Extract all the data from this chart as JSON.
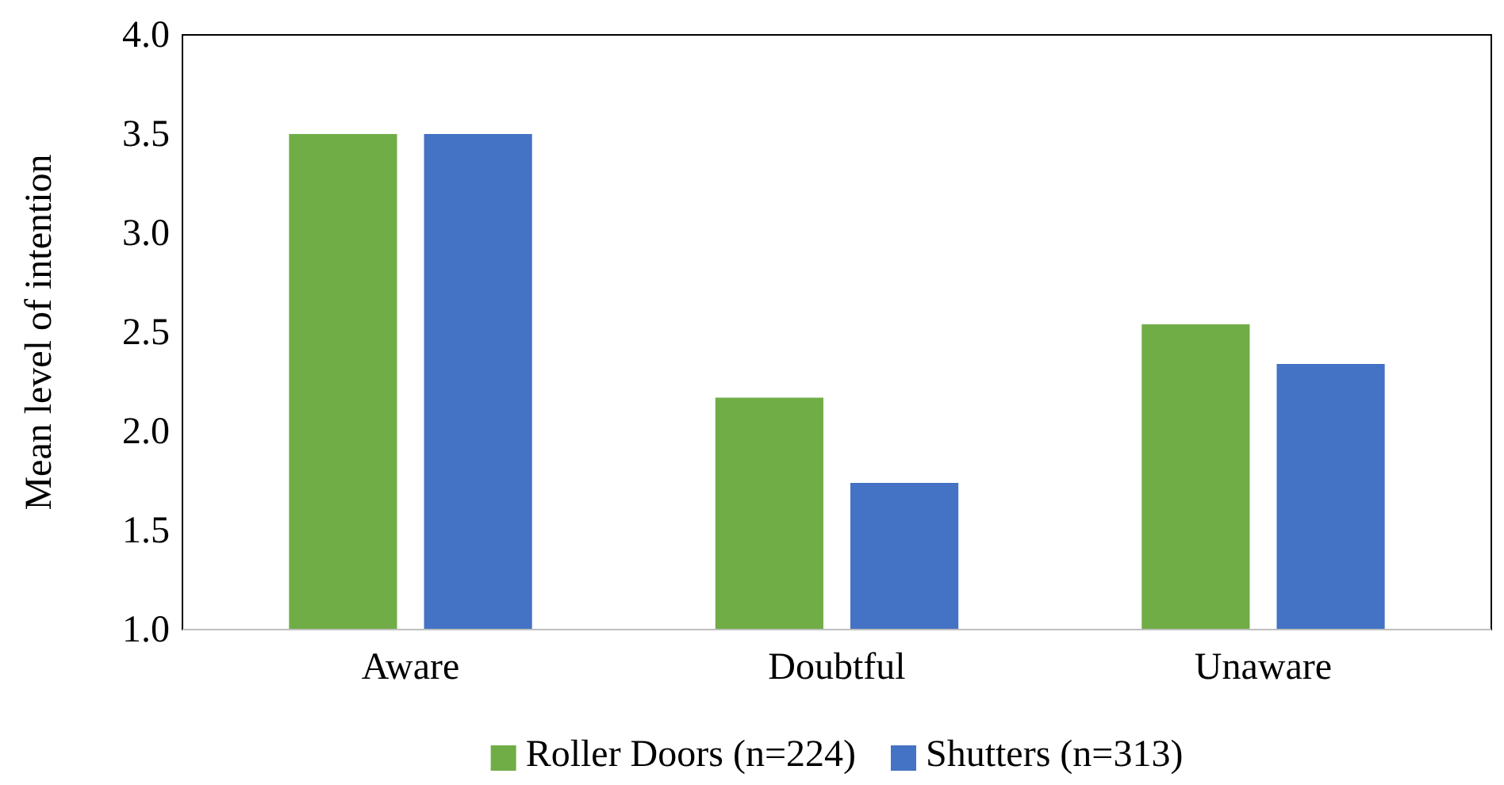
{
  "chart_data": {
    "type": "bar",
    "ylabel": "Mean level of intention",
    "categories": [
      "Aware",
      "Doubtful",
      "Unaware"
    ],
    "series": [
      {
        "name": "Roller Doors (n=224)",
        "color": "#70ad47",
        "values": [
          3.5,
          2.17,
          2.54
        ]
      },
      {
        "name": "Shutters (n=313)",
        "color": "#4472c4",
        "values": [
          3.5,
          1.74,
          2.34
        ]
      }
    ],
    "ylim": [
      1.0,
      4.0
    ],
    "yticks": [
      {
        "value": 1,
        "label": "1.0"
      },
      {
        "value": 1.5,
        "label": "1.5"
      },
      {
        "value": 2,
        "label": "2.0"
      },
      {
        "value": 2.5,
        "label": "2.5"
      },
      {
        "value": 3,
        "label": "3.0"
      },
      {
        "value": 3.5,
        "label": "3.5"
      },
      {
        "value": 4,
        "label": "4.0"
      }
    ],
    "grid": false,
    "legend": "bottom"
  }
}
